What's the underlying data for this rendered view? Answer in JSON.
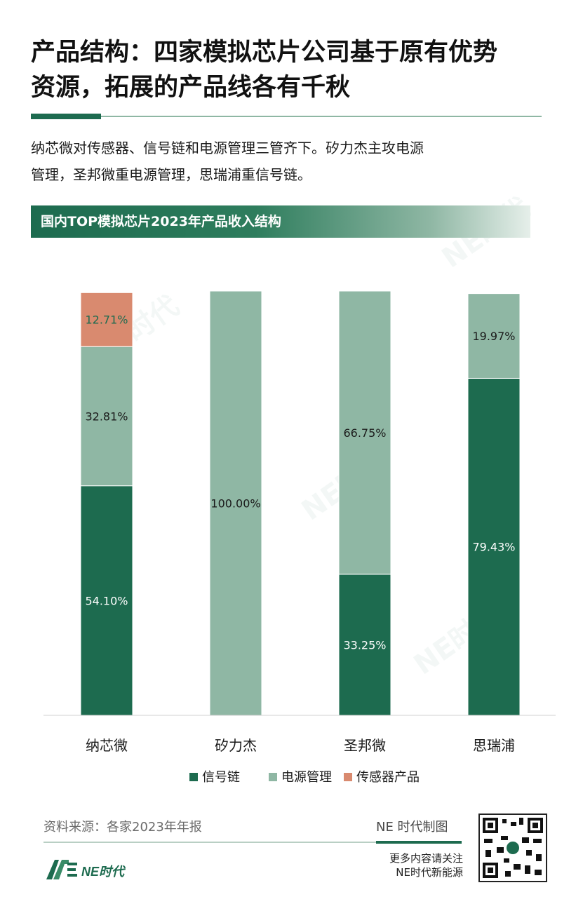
{
  "header": {
    "title_line1": "产品结构：四家模拟芯片公司基于原有优势",
    "title_line2": "资源，拓展的产品线各有千秋",
    "desc_line1": "纳芯微对传感器、信号链和电源管理三管齐下。矽力杰主攻电源",
    "desc_line2": "管理，圣邦微重电源管理，思瑞浦重信号链。",
    "banner": "国内TOP模拟芯片2023年产品收入结构"
  },
  "chart_data": {
    "type": "bar",
    "stacked": true,
    "title": "国内TOP模拟芯片2023年产品收入结构",
    "xlabel": "",
    "ylabel": "",
    "ylim": [
      0,
      100
    ],
    "grid": false,
    "legend": "bottom",
    "categories": [
      "纳芯微",
      "矽力杰",
      "圣邦微",
      "思瑞浦"
    ],
    "series": [
      {
        "name": "信号链",
        "color": "#1d6b4f",
        "values": [
          54.1,
          0,
          33.25,
          79.43
        ],
        "labels": [
          "54.10%",
          "",
          "33.25%",
          "79.43%"
        ]
      },
      {
        "name": "电源管理",
        "color": "#8fb7a4",
        "values": [
          32.81,
          100.0,
          66.75,
          19.97
        ],
        "labels": [
          "32.81%",
          "100.00%",
          "66.75%",
          "19.97%"
        ]
      },
      {
        "name": "传感器产品",
        "color": "#d98a6f",
        "values": [
          12.71,
          0,
          0,
          0
        ],
        "labels": [
          "12.71%",
          "",
          "",
          ""
        ]
      }
    ]
  },
  "footer": {
    "source": "资料来源：各家2023年年报",
    "maker": "NE 时代制图",
    "follow_line1": "更多内容请关注",
    "follow_line2": "NE时代新能源",
    "logo_text": "NE时代"
  },
  "icons": {
    "logo": "ne-logo-icon",
    "qr": "qr-code-icon"
  }
}
